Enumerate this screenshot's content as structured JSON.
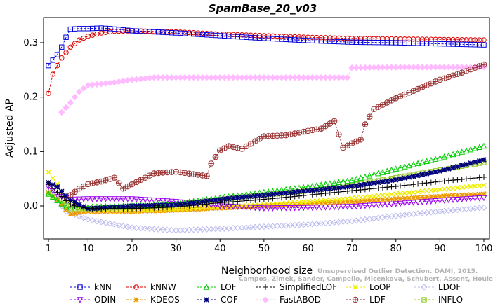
{
  "chart_data": {
    "type": "line",
    "title": "SpamBase_20_v03",
    "xlabel": "Neighborhood size",
    "ylabel": "Adjusted AP",
    "xlim": [
      1,
      100
    ],
    "ylim": [
      -0.045,
      0.33
    ],
    "x_ticks": [
      1,
      10,
      20,
      30,
      40,
      50,
      60,
      70,
      80,
      90,
      100
    ],
    "y_ticks": [
      0.0,
      0.1,
      0.2,
      0.3
    ],
    "y_tick_labels": [
      "0.0",
      "0.1",
      "0.2",
      "0.3"
    ],
    "grid": false,
    "legend_position": "bottom",
    "citation": [
      "Campos, Zimek, Sander, Campello, Micenkova, Schubert, Assent, Houle",
      "Unsupervised Outlier Detection. DAMI, 2015."
    ],
    "series": [
      {
        "name": "kNN",
        "color": "#0000dd",
        "marker": "square",
        "points": [
          [
            1,
            0.258
          ],
          [
            2,
            0.268
          ],
          [
            3,
            0.278
          ],
          [
            4,
            0.292
          ],
          [
            5,
            0.31
          ],
          [
            6,
            0.325
          ],
          [
            8,
            0.326
          ],
          [
            10,
            0.326
          ],
          [
            13,
            0.327
          ],
          [
            15,
            0.326
          ],
          [
            20,
            0.322
          ],
          [
            30,
            0.318
          ],
          [
            40,
            0.313
          ],
          [
            50,
            0.308
          ],
          [
            60,
            0.304
          ],
          [
            70,
            0.301
          ],
          [
            80,
            0.3
          ],
          [
            90,
            0.298
          ],
          [
            100,
            0.296
          ]
        ]
      },
      {
        "name": "kNNW",
        "color": "#dd0000",
        "marker": "circle",
        "points": [
          [
            1,
            0.207
          ],
          [
            2,
            0.242
          ],
          [
            3,
            0.258
          ],
          [
            4,
            0.272
          ],
          [
            6,
            0.292
          ],
          [
            8,
            0.305
          ],
          [
            10,
            0.312
          ],
          [
            13,
            0.318
          ],
          [
            16,
            0.321
          ],
          [
            20,
            0.322
          ],
          [
            30,
            0.32
          ],
          [
            40,
            0.316
          ],
          [
            50,
            0.313
          ],
          [
            60,
            0.31
          ],
          [
            70,
            0.308
          ],
          [
            80,
            0.307
          ],
          [
            90,
            0.306
          ],
          [
            100,
            0.305
          ]
        ]
      },
      {
        "name": "LOF",
        "color": "#00cc00",
        "marker": "triangle",
        "points": [
          [
            1,
            0.022
          ],
          [
            3,
            0.01
          ],
          [
            5,
            -0.002
          ],
          [
            10,
            -0.002
          ],
          [
            20,
            0.0
          ],
          [
            30,
            0.004
          ],
          [
            40,
            0.015
          ],
          [
            50,
            0.025
          ],
          [
            60,
            0.035
          ],
          [
            70,
            0.047
          ],
          [
            80,
            0.068
          ],
          [
            90,
            0.088
          ],
          [
            100,
            0.11
          ]
        ]
      },
      {
        "name": "SimplifiedLOF",
        "color": "#000000",
        "marker": "plus",
        "points": [
          [
            1,
            0.04
          ],
          [
            3,
            0.025
          ],
          [
            6,
            0.002
          ],
          [
            10,
            -0.005
          ],
          [
            20,
            -0.005
          ],
          [
            30,
            -0.002
          ],
          [
            40,
            0.006
          ],
          [
            50,
            0.012
          ],
          [
            60,
            0.02
          ],
          [
            70,
            0.028
          ],
          [
            80,
            0.036
          ],
          [
            90,
            0.045
          ],
          [
            100,
            0.053
          ]
        ]
      },
      {
        "name": "LoOP",
        "color": "#eeee00",
        "marker": "x",
        "points": [
          [
            1,
            0.062
          ],
          [
            3,
            0.04
          ],
          [
            5,
            0.01
          ],
          [
            8,
            -0.005
          ],
          [
            20,
            -0.008
          ],
          [
            30,
            -0.006
          ],
          [
            40,
            -0.002
          ],
          [
            50,
            0.002
          ],
          [
            60,
            0.008
          ],
          [
            70,
            0.014
          ],
          [
            80,
            0.022
          ],
          [
            90,
            0.03
          ],
          [
            100,
            0.038
          ]
        ]
      },
      {
        "name": "LDOF",
        "color": "#bbbbee",
        "marker": "diamond",
        "points": [
          [
            1,
            0.03
          ],
          [
            5,
            -0.01
          ],
          [
            10,
            -0.025
          ],
          [
            20,
            -0.04
          ],
          [
            30,
            -0.045
          ],
          [
            40,
            -0.042
          ],
          [
            50,
            -0.038
          ],
          [
            60,
            -0.034
          ],
          [
            70,
            -0.028
          ],
          [
            80,
            -0.018
          ],
          [
            90,
            -0.01
          ],
          [
            100,
            -0.003
          ]
        ]
      },
      {
        "name": "ODIN",
        "color": "#9900ee",
        "marker": "triangle-down",
        "points": [
          [
            1,
            0.035
          ],
          [
            3,
            0.02
          ],
          [
            6,
            0.012
          ],
          [
            10,
            0.013
          ],
          [
            20,
            0.013
          ],
          [
            30,
            0.008
          ],
          [
            40,
            0.0
          ],
          [
            50,
            -0.004
          ],
          [
            60,
            -0.003
          ],
          [
            70,
            -0.001
          ],
          [
            80,
            0.004
          ],
          [
            90,
            0.01
          ],
          [
            100,
            0.015
          ]
        ]
      },
      {
        "name": "KDEOS",
        "color": "#ee9900",
        "marker": "asterisk",
        "points": [
          [
            1,
            0.025
          ],
          [
            3,
            0.01
          ],
          [
            6,
            -0.015
          ],
          [
            10,
            -0.01
          ],
          [
            20,
            -0.01
          ],
          [
            30,
            -0.008
          ],
          [
            40,
            -0.004
          ],
          [
            50,
            0.0
          ],
          [
            60,
            0.004
          ],
          [
            70,
            0.008
          ],
          [
            80,
            0.013
          ],
          [
            90,
            0.018
          ],
          [
            100,
            0.022
          ]
        ]
      },
      {
        "name": "COF",
        "color": "#000080",
        "marker": "star",
        "points": [
          [
            1,
            0.043
          ],
          [
            3,
            0.035
          ],
          [
            6,
            0.01
          ],
          [
            10,
            -0.005
          ],
          [
            20,
            0.0
          ],
          [
            30,
            0.002
          ],
          [
            40,
            0.012
          ],
          [
            50,
            0.02
          ],
          [
            60,
            0.028
          ],
          [
            70,
            0.036
          ],
          [
            80,
            0.048
          ],
          [
            90,
            0.064
          ],
          [
            100,
            0.085
          ]
        ]
      },
      {
        "name": "FastABOD",
        "color": "#ffbbff",
        "marker": "diamond-filled",
        "points": [
          [
            4,
            0.172
          ],
          [
            6,
            0.19
          ],
          [
            8,
            0.21
          ],
          [
            10,
            0.222
          ],
          [
            15,
            0.226
          ],
          [
            20,
            0.232
          ],
          [
            25,
            0.236
          ],
          [
            30,
            0.236
          ],
          [
            40,
            0.236
          ],
          [
            50,
            0.236
          ],
          [
            60,
            0.236
          ],
          [
            69,
            0.236
          ],
          [
            70,
            0.254
          ],
          [
            80,
            0.255
          ],
          [
            90,
            0.255
          ],
          [
            100,
            0.255
          ]
        ]
      },
      {
        "name": "LDF",
        "color": "#993333",
        "marker": "circle-plus",
        "points": [
          [
            6,
            0.02
          ],
          [
            8,
            0.032
          ],
          [
            10,
            0.04
          ],
          [
            13,
            0.045
          ],
          [
            16,
            0.052
          ],
          [
            18,
            0.032
          ],
          [
            20,
            0.04
          ],
          [
            25,
            0.06
          ],
          [
            30,
            0.063
          ],
          [
            37,
            0.055
          ],
          [
            38,
            0.078
          ],
          [
            40,
            0.102
          ],
          [
            42,
            0.11
          ],
          [
            45,
            0.105
          ],
          [
            50,
            0.128
          ],
          [
            55,
            0.13
          ],
          [
            60,
            0.138
          ],
          [
            63,
            0.142
          ],
          [
            66,
            0.156
          ],
          [
            68,
            0.107
          ],
          [
            70,
            0.115
          ],
          [
            72,
            0.122
          ],
          [
            73,
            0.15
          ],
          [
            75,
            0.178
          ],
          [
            80,
            0.198
          ],
          [
            85,
            0.215
          ],
          [
            90,
            0.232
          ],
          [
            95,
            0.245
          ],
          [
            100,
            0.26
          ]
        ]
      },
      {
        "name": "INFLO",
        "color": "#99cc33",
        "marker": "box-x",
        "points": [
          [
            1,
            0.022
          ],
          [
            3,
            0.012
          ],
          [
            6,
            -0.005
          ],
          [
            10,
            -0.005
          ],
          [
            20,
            -0.002
          ],
          [
            30,
            0.002
          ],
          [
            40,
            0.012
          ],
          [
            50,
            0.02
          ],
          [
            60,
            0.028
          ],
          [
            70,
            0.038
          ],
          [
            80,
            0.052
          ],
          [
            90,
            0.066
          ],
          [
            100,
            0.08
          ]
        ]
      }
    ]
  }
}
